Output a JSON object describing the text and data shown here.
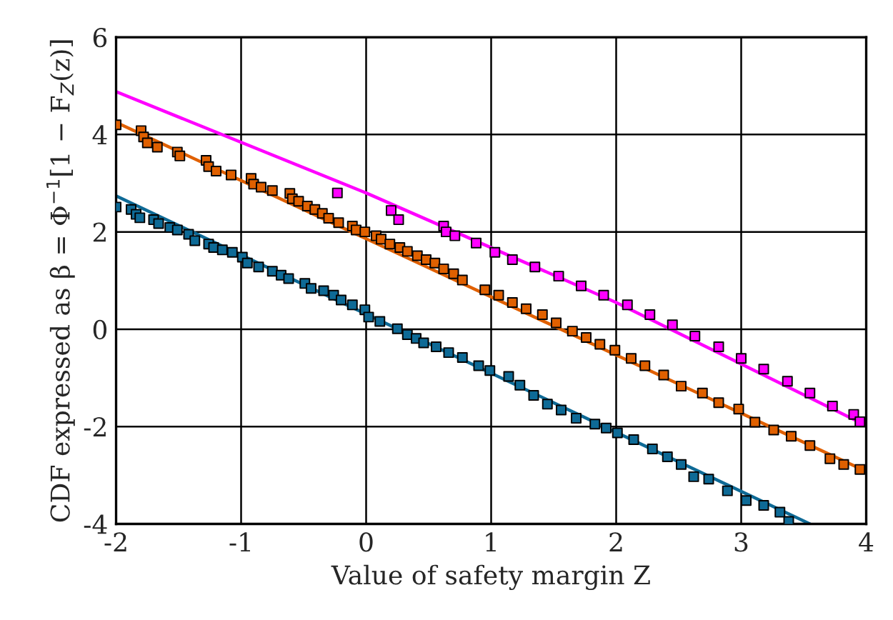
{
  "chart_data": {
    "type": "scatter",
    "xlabel": "Value of safety margin Z",
    "ylabel": "CDF expressed as β = Φ$^{−1}$[1 − F$_{Z}$(z)]",
    "xlim": [
      -2,
      4
    ],
    "ylim": [
      -4,
      6
    ],
    "xticks": [
      -2,
      -1,
      0,
      1,
      2,
      3,
      4
    ],
    "yticks": [
      -4,
      -2,
      0,
      2,
      4,
      6
    ],
    "grid": true,
    "legend": false,
    "series": [
      {
        "type": "line",
        "color": "#ff00ff",
        "x": [
          -2,
          0,
          2,
          4
        ],
        "values": [
          4.88,
          2.8,
          0.55,
          -1.98
        ]
      },
      {
        "type": "line",
        "color": "#e06000",
        "x": [
          -2,
          4
        ],
        "values": [
          4.25,
          -2.92
        ]
      },
      {
        "type": "line",
        "color": "#0e6a96",
        "x": [
          -2,
          3.55
        ],
        "values": [
          2.74,
          -4
        ]
      },
      {
        "marker": "square",
        "color": "#ff00ff",
        "x": [
          -0.23,
          0.2,
          0.26,
          0.62,
          0.64,
          0.71,
          0.88,
          1.03,
          1.17,
          1.35,
          1.54,
          1.72,
          1.9,
          2.09,
          2.27,
          2.45,
          2.63,
          2.82,
          3.0,
          3.18,
          3.37,
          3.55,
          3.73,
          3.9,
          3.95
        ],
        "values": [
          2.8,
          2.44,
          2.25,
          2.12,
          2.0,
          1.92,
          1.77,
          1.58,
          1.43,
          1.28,
          1.09,
          0.89,
          0.7,
          0.5,
          0.3,
          0.09,
          -0.14,
          -0.36,
          -0.6,
          -0.82,
          -1.07,
          -1.31,
          -1.58,
          -1.75,
          -1.9
        ]
      },
      {
        "marker": "square",
        "color": "#e06000",
        "x": [
          -2.0,
          -1.8,
          -1.78,
          -1.75,
          -1.67,
          -1.51,
          -1.49,
          -1.28,
          -1.26,
          -1.2,
          -1.08,
          -0.92,
          -0.9,
          -0.84,
          -0.75,
          -0.61,
          -0.59,
          -0.54,
          -0.47,
          -0.41,
          -0.35,
          -0.3,
          -0.22,
          -0.11,
          -0.08,
          -0.01,
          0.08,
          0.12,
          0.19,
          0.27,
          0.33,
          0.41,
          0.48,
          0.55,
          0.62,
          0.7,
          0.77,
          0.95,
          1.06,
          1.17,
          1.28,
          1.41,
          1.52,
          1.65,
          1.76,
          1.87,
          1.99,
          2.12,
          2.23,
          2.38,
          2.52,
          2.69,
          2.82,
          2.98,
          3.11,
          3.26,
          3.4,
          3.55,
          3.71,
          3.82,
          3.95
        ],
        "values": [
          4.2,
          4.08,
          3.95,
          3.83,
          3.74,
          3.64,
          3.56,
          3.47,
          3.34,
          3.25,
          3.17,
          3.1,
          2.98,
          2.92,
          2.85,
          2.79,
          2.68,
          2.63,
          2.53,
          2.46,
          2.38,
          2.28,
          2.19,
          2.12,
          2.04,
          2.0,
          1.92,
          1.85,
          1.75,
          1.68,
          1.6,
          1.51,
          1.43,
          1.36,
          1.24,
          1.14,
          1.01,
          0.81,
          0.7,
          0.55,
          0.42,
          0.3,
          0.13,
          -0.04,
          -0.17,
          -0.31,
          -0.43,
          -0.6,
          -0.75,
          -0.94,
          -1.17,
          -1.31,
          -1.51,
          -1.64,
          -1.91,
          -2.07,
          -2.2,
          -2.39,
          -2.66,
          -2.78,
          -2.88
        ]
      },
      {
        "marker": "square",
        "color": "#0e6a96",
        "x": [
          -2.0,
          -1.88,
          -1.84,
          -1.81,
          -1.7,
          -1.66,
          -1.57,
          -1.51,
          -1.42,
          -1.37,
          -1.26,
          -1.22,
          -1.15,
          -1.07,
          -0.99,
          -0.95,
          -0.86,
          -0.75,
          -0.68,
          -0.62,
          -0.49,
          -0.44,
          -0.34,
          -0.26,
          -0.2,
          -0.11,
          -0.01,
          0.02,
          0.11,
          0.25,
          0.33,
          0.4,
          0.46,
          0.56,
          0.66,
          0.77,
          0.9,
          0.99,
          1.14,
          1.23,
          1.34,
          1.45,
          1.56,
          1.68,
          1.83,
          1.92,
          2.01,
          2.14,
          2.29,
          2.41,
          2.52,
          2.62,
          2.74,
          2.89,
          3.04,
          3.18,
          3.31,
          3.38
        ],
        "values": [
          2.51,
          2.46,
          2.36,
          2.29,
          2.25,
          2.17,
          2.09,
          2.04,
          1.95,
          1.82,
          1.75,
          1.68,
          1.63,
          1.58,
          1.48,
          1.36,
          1.28,
          1.19,
          1.11,
          1.04,
          0.94,
          0.84,
          0.79,
          0.7,
          0.6,
          0.5,
          0.4,
          0.25,
          0.16,
          0.01,
          -0.11,
          -0.19,
          -0.28,
          -0.36,
          -0.48,
          -0.58,
          -0.75,
          -0.85,
          -0.97,
          -1.15,
          -1.36,
          -1.54,
          -1.66,
          -1.83,
          -1.95,
          -2.03,
          -2.13,
          -2.27,
          -2.46,
          -2.62,
          -2.78,
          -3.03,
          -3.08,
          -3.32,
          -3.52,
          -3.62,
          -3.76,
          -3.95
        ]
      }
    ]
  }
}
